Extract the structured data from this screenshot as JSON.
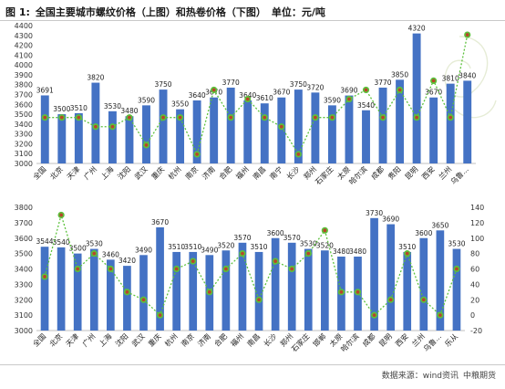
{
  "header": {
    "figure_no": "图 1:",
    "title": "全国主要城市螺纹价格（上图）和热卷价格（下图）",
    "unit": "单位：元/吨"
  },
  "footer": {
    "source_label": "数据来源：wind资讯",
    "company": "中粮期货"
  },
  "chart_data": [
    {
      "type": "bar",
      "categories": [
        "全国",
        "北京",
        "天津",
        "广州",
        "上海",
        "沈阳",
        "武汉",
        "重庆",
        "杭州",
        "南京",
        "济南",
        "合肥",
        "福州",
        "南昌",
        "南宁",
        "长沙",
        "郑州",
        "石家庄",
        "太原",
        "哈尔滨",
        "成都",
        "贵阳",
        "昆明",
        "西安",
        "兰州",
        "乌鲁..."
      ],
      "series": [
        {
          "type": "bar",
          "values": [
            3691,
            3500,
            3510,
            3820,
            3530,
            3480,
            3590,
            3750,
            3550,
            3640,
            3670,
            3770,
            3640,
            3610,
            3670,
            3750,
            3720,
            3590,
            3690,
            3540,
            3770,
            3850,
            4320,
            3670,
            3810,
            3840
          ],
          "color": "#4472c4",
          "axis": "left"
        },
        {
          "type": "line",
          "values": [
            0,
            0,
            0,
            -10,
            -10,
            0,
            -30,
            0,
            0,
            -40,
            30,
            0,
            20,
            0,
            -10,
            -40,
            0,
            0,
            20,
            30,
            0,
            30,
            0,
            40,
            0,
            90
          ],
          "color": "#5cc13c",
          "marker_color": "#b7472a",
          "axis": "right"
        }
      ],
      "ylim": [
        3000,
        4400
      ],
      "yticks": [
        3000,
        3100,
        3200,
        3300,
        3400,
        3500,
        3600,
        3700,
        3800,
        3900,
        4000,
        4100,
        4200,
        4300,
        4400
      ],
      "y2lim": [
        -50,
        100
      ],
      "grid": false,
      "legend": "none",
      "data_labels": true
    },
    {
      "type": "bar",
      "categories": [
        "全国",
        "北京",
        "天津",
        "广州",
        "上海",
        "沈阳",
        "武汉",
        "重庆",
        "杭州",
        "南京",
        "济南",
        "合肥",
        "福州",
        "南昌",
        "长沙",
        "郑州",
        "石家庄",
        "邯郸",
        "太原",
        "哈尔滨",
        "成都",
        "昆明",
        "西安",
        "兰州",
        "乌鲁...",
        "乐从"
      ],
      "series": [
        {
          "type": "bar",
          "values": [
            3544,
            3540,
            3500,
            3530,
            3460,
            3420,
            3490,
            3670,
            3510,
            3510,
            3490,
            3520,
            3570,
            3510,
            3600,
            3570,
            3530,
            3520,
            3480,
            3480,
            3730,
            3690,
            3510,
            3600,
            3650,
            3530
          ],
          "color": "#4472c4",
          "axis": "left"
        },
        {
          "type": "line",
          "values": [
            50,
            130,
            60,
            80,
            60,
            30,
            20,
            0,
            60,
            70,
            30,
            60,
            80,
            20,
            70,
            60,
            80,
            110,
            30,
            30,
            0,
            20,
            80,
            20,
            0,
            60
          ],
          "color": "#5cc13c",
          "marker_color": "#b7472a",
          "axis": "right"
        }
      ],
      "ylim": [
        3000,
        3800
      ],
      "yticks": [
        3000,
        3100,
        3200,
        3300,
        3400,
        3500,
        3600,
        3700,
        3800
      ],
      "y2lim": [
        -20,
        140
      ],
      "y2ticks": [
        -20,
        0,
        20,
        40,
        60,
        80,
        100,
        120,
        140
      ],
      "grid": false,
      "legend": "none",
      "data_labels": true
    }
  ]
}
